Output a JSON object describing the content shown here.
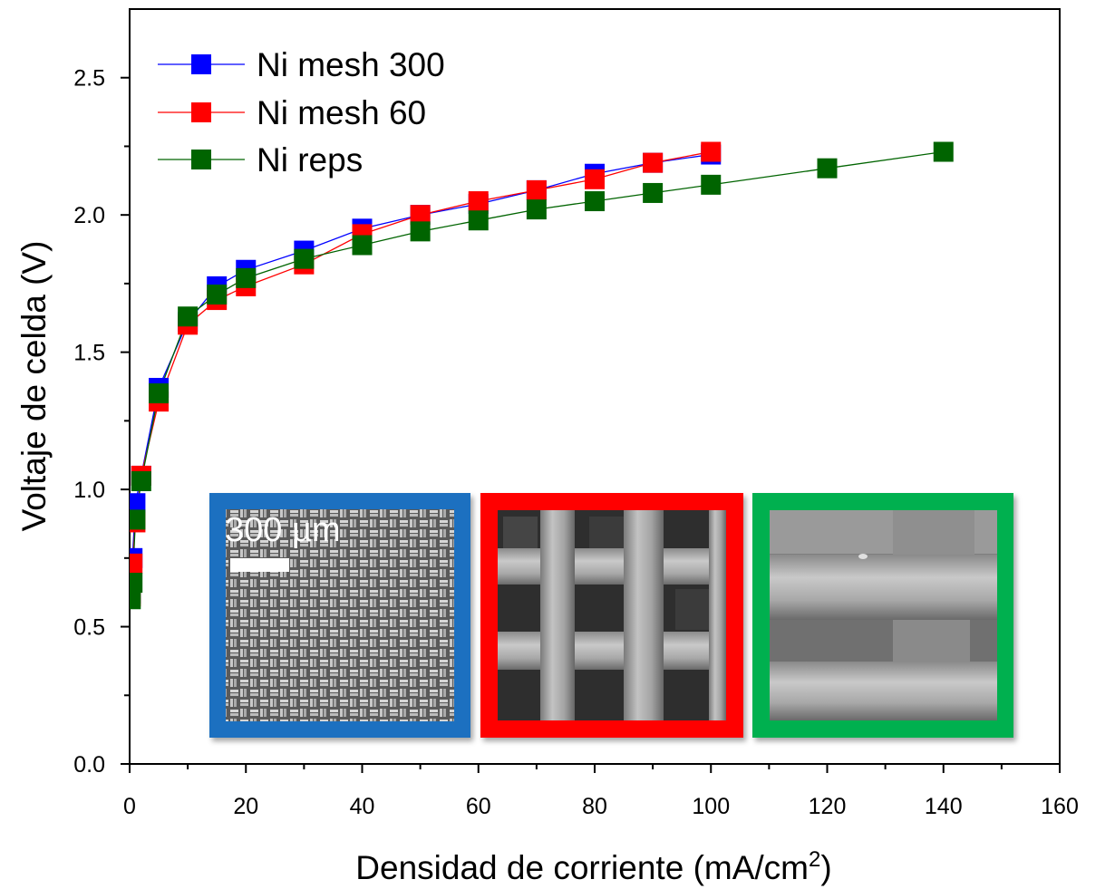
{
  "chart_data": {
    "type": "line",
    "xlabel": "Densidad de corriente (mA/cm",
    "xlabel_superscript": "2",
    "xlabel_suffix": ")",
    "ylabel": "Voltaje de celda (V)",
    "xlim": [
      0,
      160
    ],
    "ylim": [
      0,
      2.75
    ],
    "x_ticks": [
      "0",
      "20",
      "40",
      "60",
      "80",
      "100",
      "120",
      "140",
      "160"
    ],
    "y_ticks": [
      "0.0",
      "0.5",
      "1.0",
      "1.5",
      "2.0",
      "2.5"
    ],
    "legend_position": "top-left",
    "series": [
      {
        "name": "Ni mesh 300",
        "color": "#0000ff",
        "x": [
          0.2,
          0.5,
          1,
          2,
          5,
          10,
          15,
          20,
          30,
          40,
          50,
          60,
          70,
          80,
          90,
          100
        ],
        "y": [
          0.62,
          0.75,
          0.95,
          1.05,
          1.37,
          1.61,
          1.74,
          1.8,
          1.87,
          1.95,
          2.0,
          2.04,
          2.09,
          2.15,
          2.19,
          2.22
        ]
      },
      {
        "name": "Ni mesh 60",
        "color": "#ff0000",
        "x": [
          0.2,
          0.5,
          1,
          2,
          5,
          10,
          15,
          20,
          30,
          40,
          50,
          60,
          70,
          80,
          90,
          100
        ],
        "y": [
          0.61,
          0.73,
          0.88,
          1.05,
          1.32,
          1.6,
          1.69,
          1.74,
          1.82,
          1.93,
          2.0,
          2.05,
          2.09,
          2.13,
          2.19,
          2.23
        ]
      },
      {
        "name": "Ni reps",
        "color": "#006400",
        "x": [
          0.2,
          0.5,
          1,
          2,
          5,
          10,
          15,
          20,
          30,
          40,
          50,
          60,
          70,
          80,
          90,
          100,
          120,
          140
        ],
        "y": [
          0.6,
          0.66,
          0.89,
          1.03,
          1.35,
          1.63,
          1.71,
          1.77,
          1.84,
          1.89,
          1.94,
          1.98,
          2.02,
          2.05,
          2.08,
          2.11,
          2.17,
          2.23
        ]
      }
    ]
  },
  "insets": [
    {
      "frame_color": "#1f6fc0",
      "texture": "fine-mesh"
    },
    {
      "frame_color": "#ff0000",
      "texture": "coarse-mesh"
    },
    {
      "frame_color": "#00b050",
      "texture": "reps-weave"
    }
  ],
  "scale_bar": {
    "label": "300 µm"
  }
}
